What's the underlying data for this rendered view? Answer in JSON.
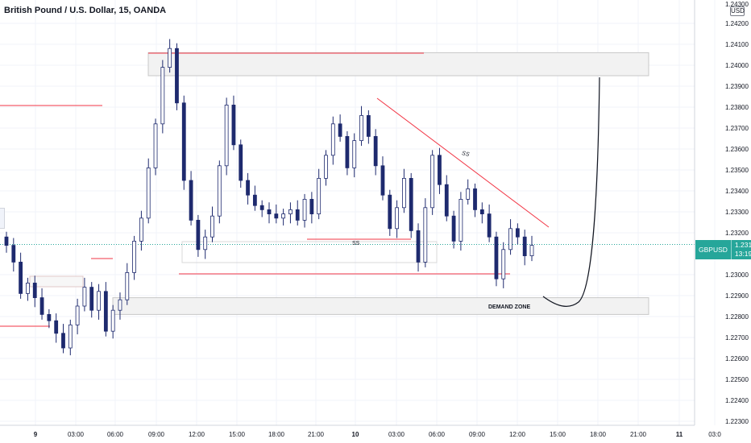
{
  "header": {
    "title": "British Pound / U.S. Dollar, 15, OANDA",
    "currency": "USD"
  },
  "price_tag": {
    "symbol": "GBPUSD",
    "price": "1.23144",
    "countdown": "13:19"
  },
  "annotations": {
    "ss_low": "SS",
    "ss_high": "SS",
    "demand_zone": "DEMAND ZONE"
  },
  "colors": {
    "up_candle_fill": "#ffffff",
    "up_candle_border": "#1e2a6e",
    "down_candle": "#1e2a6e",
    "level_line": "#f23645",
    "zone_fill": "#f2f2f2",
    "zone_border": "#c8c8c8",
    "price_line": "#26a69a",
    "grid": "#f0f3fa"
  },
  "chart_data": {
    "type": "candlestick",
    "symbol": "GBPUSD",
    "timeframe": "15",
    "broker": "OANDA",
    "ylim": [
      1.223,
      1.243
    ],
    "y_ticks": [
      "1.24200",
      "1.24100",
      "1.24000",
      "1.23900",
      "1.23800",
      "1.23700",
      "1.23600",
      "1.23500",
      "1.23400",
      "1.23300",
      "1.23200",
      "1.23000",
      "1.22900",
      "1.22800",
      "1.22700",
      "1.22600",
      "1.22500",
      "1.22400",
      "1.22300"
    ],
    "y_top_partial_label": "1.24300",
    "x_ticks": [
      "9",
      "03:00",
      "06:00",
      "09:00",
      "12:00",
      "15:00",
      "18:00",
      "21:00",
      "10",
      "03:00",
      "06:00",
      "09:00",
      "12:00",
      "15:00",
      "18:00",
      "21:00",
      "11",
      "03:0"
    ],
    "last_price": 1.23144,
    "price_path": [
      1.2314,
      1.2306,
      1.2291,
      1.2296,
      1.2289,
      1.2281,
      1.2278,
      1.2272,
      1.2265,
      1.2276,
      1.2285,
      1.2294,
      1.2283,
      1.2292,
      1.2273,
      1.2283,
      1.2288,
      1.2301,
      1.2316,
      1.2327,
      1.2351,
      1.2372,
      1.2399,
      1.2408,
      1.2382,
      1.2345,
      1.2326,
      1.2312,
      1.2318,
      1.2328,
      1.2352,
      1.2381,
      1.2362,
      1.2345,
      1.2338,
      1.2333,
      1.2331,
      1.2329,
      1.2327,
      1.2329,
      1.2331,
      1.2326,
      1.2336,
      1.2329,
      1.2346,
      1.2357,
      1.2372,
      1.2366,
      1.2351,
      1.2364,
      1.2376,
      1.2366,
      1.2352,
      1.2338,
      1.2322,
      1.2332,
      1.2346,
      1.2321,
      1.2306,
      1.2332,
      1.2357,
      1.2343,
      1.2328,
      1.2316,
      1.2336,
      1.2341,
      1.2331,
      1.2329,
      1.2318,
      1.2298,
      1.2312,
      1.2322,
      1.2318,
      1.2309,
      1.2314
    ],
    "levels": [
      {
        "kind": "horizontal",
        "price": 1.2407
      },
      {
        "kind": "horizontal",
        "price": 1.238
      },
      {
        "kind": "horizontal",
        "price": 1.2303
      },
      {
        "kind": "horizontal",
        "price": 1.232
      },
      {
        "kind": "horizontal",
        "price": 1.2277
      }
    ],
    "zones": [
      {
        "label": "",
        "from": 1.2395,
        "to": 1.2406
      },
      {
        "label": "DEMAND ZONE",
        "from": 1.2281,
        "to": 1.2289
      }
    ],
    "trendline": {
      "from_price": 1.2378,
      "to_price": 1.2322
    },
    "projection": "curve dipping into demand zone then rallying up to upper zone"
  }
}
